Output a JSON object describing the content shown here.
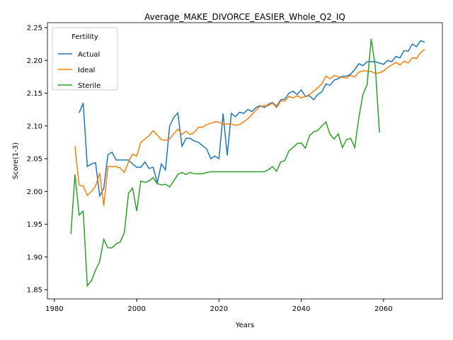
{
  "chart_data": {
    "type": "line",
    "title": "Average_MAKE_DIVORCE_EASIER_Whole_Q2_IQ",
    "x_label": "Years",
    "y_label": "Score(1-3)",
    "legend_title": "Fertility",
    "legend": "upper left",
    "xlim": [
      1978.3,
      2074.3
    ],
    "ylim": [
      1.836,
      2.2576
    ],
    "xticks": [
      1980,
      2000,
      2020,
      2040,
      2060
    ],
    "yticks": [
      1.85,
      {
        "value": 1.9,
        "label": "1.90"
      },
      1.95,
      {
        "value": 2,
        "label": "2.00"
      },
      2.05,
      {
        "value": 2.1,
        "label": "2.10"
      },
      2.15,
      {
        "value": 2.2,
        "label": "2.20"
      },
      2.25
    ],
    "series": [
      {
        "name": "Actual",
        "color": "#1f77b4",
        "x": [
          1986,
          1987,
          1988,
          1989,
          1990,
          1991,
          1992,
          1993,
          1994,
          1995,
          1996,
          1997,
          1998,
          1999,
          2000,
          2001,
          2002,
          2003,
          2004,
          2005,
          2006,
          2007,
          2008,
          2009,
          2010,
          2011,
          2012,
          2013,
          2014,
          2015,
          2016,
          2017,
          2018,
          2019,
          2020,
          2021,
          2022,
          2023,
          2024,
          2025,
          2026,
          2027,
          2028,
          2029,
          2030,
          2031,
          2032,
          2033,
          2034,
          2035,
          2036,
          2037,
          2038,
          2039,
          2040,
          2041,
          2042,
          2043,
          2044,
          2045,
          2046,
          2047,
          2048,
          2049,
          2050,
          2051,
          2052,
          2053,
          2054,
          2055,
          2056,
          2057,
          2058,
          2059,
          2060,
          2061,
          2062,
          2063,
          2064,
          2065,
          2066,
          2067,
          2068,
          2069,
          2070
        ],
        "values": [
          2.12,
          2.135,
          2.038,
          2.042,
          2.044,
          1.993,
          2.005,
          2.056,
          2.06,
          2.048,
          2.048,
          2.048,
          2.048,
          2.042,
          2.037,
          2.037,
          2.045,
          2.035,
          2.037,
          2.013,
          2.042,
          2.033,
          2.1,
          2.113,
          2.12,
          2.069,
          2.081,
          2.081,
          2.077,
          2.075,
          2.07,
          2.065,
          2.05,
          2.054,
          2.05,
          2.119,
          2.055,
          2.119,
          2.114,
          2.121,
          2.119,
          2.125,
          2.122,
          2.128,
          2.131,
          2.128,
          2.133,
          2.136,
          2.13,
          2.14,
          2.141,
          2.15,
          2.153,
          2.148,
          2.155,
          2.145,
          2.146,
          2.14,
          2.148,
          2.152,
          2.164,
          2.162,
          2.17,
          2.172,
          2.176,
          2.176,
          2.179,
          2.186,
          2.195,
          2.192,
          2.198,
          2.198,
          2.198,
          2.196,
          2.194,
          2.2,
          2.198,
          2.206,
          2.204,
          2.215,
          2.214,
          2.225,
          2.221,
          2.23,
          2.228
        ]
      },
      {
        "name": "Ideal",
        "color": "#ff7f0e",
        "x": [
          1985,
          1986,
          1987,
          1988,
          1989,
          1990,
          1991,
          1992,
          1993,
          1994,
          1995,
          1996,
          1997,
          1998,
          1999,
          2000,
          2001,
          2002,
          2003,
          2004,
          2005,
          2006,
          2007,
          2008,
          2009,
          2010,
          2011,
          2012,
          2013,
          2014,
          2015,
          2016,
          2017,
          2018,
          2019,
          2020,
          2021,
          2022,
          2023,
          2024,
          2025,
          2026,
          2027,
          2028,
          2029,
          2030,
          2031,
          2032,
          2033,
          2034,
          2035,
          2036,
          2037,
          2038,
          2039,
          2040,
          2041,
          2042,
          2043,
          2044,
          2045,
          2046,
          2047,
          2048,
          2049,
          2050,
          2051,
          2052,
          2053,
          2054,
          2055,
          2056,
          2057,
          2058,
          2059,
          2060,
          2061,
          2062,
          2063,
          2064,
          2065,
          2066,
          2067,
          2068,
          2069,
          2070
        ],
        "values": [
          2.069,
          2.01,
          2.008,
          1.994,
          2.0,
          2.008,
          2.028,
          1.978,
          2.038,
          2.038,
          2.038,
          2.036,
          2.029,
          2.045,
          2.057,
          2.054,
          2.075,
          2.08,
          2.085,
          2.093,
          2.086,
          2.079,
          2.078,
          2.08,
          2.088,
          2.095,
          2.087,
          2.092,
          2.087,
          2.09,
          2.098,
          2.098,
          2.102,
          2.104,
          2.106,
          2.106,
          2.102,
          2.103,
          2.103,
          2.101,
          2.102,
          2.106,
          2.111,
          2.117,
          2.124,
          2.13,
          2.131,
          2.131,
          2.135,
          2.128,
          2.138,
          2.138,
          2.145,
          2.143,
          2.146,
          2.143,
          2.145,
          2.148,
          2.153,
          2.158,
          2.164,
          2.176,
          2.172,
          2.177,
          2.175,
          2.174,
          2.173,
          2.177,
          2.175,
          2.182,
          2.184,
          2.184,
          2.183,
          2.18,
          2.181,
          2.184,
          2.189,
          2.193,
          2.197,
          2.193,
          2.199,
          2.196,
          2.204,
          2.203,
          2.212,
          2.217
        ]
      },
      {
        "name": "Sterile",
        "color": "#2ca02c",
        "x": [
          1984,
          1985,
          1986,
          1987,
          1988,
          1989,
          1990,
          1991,
          1992,
          1993,
          1994,
          1995,
          1996,
          1997,
          1998,
          1999,
          2000,
          2001,
          2002,
          2003,
          2004,
          2005,
          2006,
          2007,
          2008,
          2009,
          2010,
          2011,
          2012,
          2013,
          2014,
          2015,
          2016,
          2017,
          2018,
          2019,
          2020,
          2021,
          2022,
          2023,
          2024,
          2025,
          2026,
          2027,
          2028,
          2029,
          2030,
          2031,
          2032,
          2033,
          2034,
          2035,
          2036,
          2037,
          2038,
          2039,
          2040,
          2041,
          2042,
          2043,
          2044,
          2045,
          2046,
          2047,
          2048,
          2049,
          2050,
          2051,
          2052,
          2053,
          2054,
          2055,
          2056,
          2057,
          2058,
          2059
        ],
        "values": [
          1.935,
          2.026,
          1.964,
          1.97,
          1.856,
          1.864,
          1.88,
          1.893,
          1.927,
          1.914,
          1.914,
          1.92,
          1.923,
          1.937,
          1.997,
          2.005,
          1.97,
          2.016,
          2.014,
          2.016,
          2.021,
          2.012,
          2.01,
          2.011,
          2.007,
          2.016,
          2.026,
          2.029,
          2.026,
          2.029,
          2.027,
          2.027,
          2.027,
          2.029,
          2.03,
          2.03,
          2.03,
          2.03,
          2.03,
          2.03,
          2.03,
          2.03,
          2.03,
          2.03,
          2.03,
          2.03,
          2.03,
          2.03,
          2.033,
          2.038,
          2.031,
          2.045,
          2.047,
          2.062,
          2.067,
          2.073,
          2.074,
          2.066,
          2.085,
          2.091,
          2.093,
          2.1,
          2.106,
          2.087,
          2.08,
          2.088,
          2.067,
          2.079,
          2.081,
          2.067,
          2.113,
          2.148,
          2.163,
          2.233,
          2.19,
          2.09
        ]
      }
    ]
  }
}
